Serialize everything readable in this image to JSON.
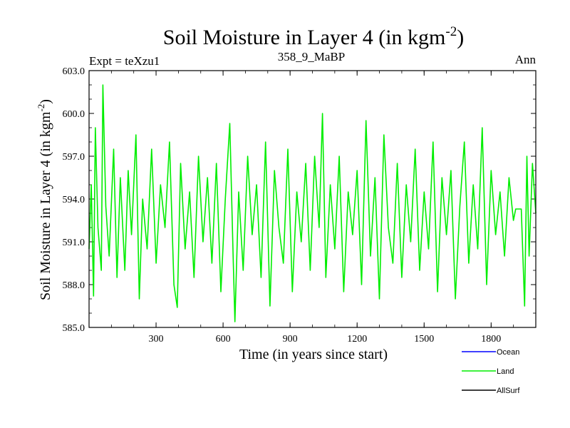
{
  "header": {
    "title_main": "Soil Moisture in Layer 4 (in kgm",
    "title_sup": "-2",
    "title_close": ")",
    "expt_label": "Expt = teXzu1",
    "run_label": "358_9_MaBP",
    "season_label": "Ann"
  },
  "colors": {
    "land": "#00ee00",
    "ocean": "#0000ff",
    "allsurf": "#000000",
    "axis": "#000000",
    "background": "#ffffff"
  },
  "chart_data": {
    "type": "line",
    "title": "Soil Moisture in Layer 4 (in kgm-2)",
    "xlabel": "Time (in years since start)",
    "ylabel_main": "Soil Moisture in Layer 4 (in kgm",
    "ylabel_sup": "-2",
    "ylabel_close": ")",
    "xlim": [
      0,
      2000
    ],
    "ylim": [
      585.0,
      603.0
    ],
    "x_ticks": [
      300,
      600,
      900,
      1200,
      1500,
      1800
    ],
    "x_tick_labels": [
      "300",
      "600",
      "900",
      "1200",
      "1500",
      "1800"
    ],
    "y_ticks": [
      585.0,
      588.0,
      591.0,
      594.0,
      597.0,
      600.0,
      603.0
    ],
    "y_tick_labels": [
      "585.0",
      "588.0",
      "591.0",
      "594.0",
      "597.0",
      "600.0",
      "603.0"
    ],
    "series": [
      {
        "name": "Land",
        "color": "#00ee00",
        "x": [
          0,
          10,
          20,
          28,
          40,
          55,
          62,
          75,
          90,
          110,
          125,
          140,
          160,
          175,
          190,
          210,
          225,
          240,
          260,
          280,
          300,
          320,
          340,
          360,
          380,
          395,
          410,
          430,
          450,
          470,
          490,
          510,
          530,
          550,
          570,
          590,
          610,
          630,
          645,
          653,
          670,
          690,
          710,
          730,
          750,
          770,
          790,
          810,
          830,
          850,
          870,
          890,
          910,
          930,
          950,
          970,
          990,
          1010,
          1030,
          1045,
          1060,
          1080,
          1100,
          1120,
          1140,
          1160,
          1180,
          1200,
          1220,
          1240,
          1260,
          1280,
          1300,
          1320,
          1340,
          1360,
          1380,
          1400,
          1420,
          1440,
          1460,
          1480,
          1500,
          1520,
          1540,
          1560,
          1580,
          1600,
          1620,
          1640,
          1660,
          1680,
          1700,
          1720,
          1740,
          1760,
          1780,
          1800,
          1820,
          1840,
          1860,
          1880,
          1900,
          1910,
          1935,
          1950,
          1960,
          1970,
          1985,
          2000
        ],
        "y": [
          590.5,
          595.0,
          587.2,
          599.0,
          592.0,
          589.0,
          602.0,
          593.5,
          590.0,
          597.5,
          588.5,
          595.5,
          589.0,
          596.0,
          591.5,
          598.5,
          587.0,
          594.0,
          590.5,
          597.5,
          589.5,
          595.0,
          592.0,
          598.0,
          588.0,
          586.4,
          596.5,
          590.5,
          594.5,
          588.5,
          597.0,
          591.0,
          595.5,
          589.5,
          596.5,
          587.5,
          594.0,
          599.3,
          590.0,
          585.4,
          594.5,
          589.0,
          597.0,
          591.5,
          595.0,
          588.5,
          598.0,
          586.5,
          596.0,
          592.0,
          589.5,
          597.5,
          587.5,
          594.5,
          591.0,
          596.5,
          589.0,
          597.0,
          592.0,
          600.0,
          588.5,
          595.0,
          590.5,
          597.0,
          587.5,
          594.5,
          591.5,
          596.0,
          588.0,
          599.5,
          590.0,
          595.5,
          587.0,
          598.5,
          592.0,
          589.5,
          596.5,
          588.5,
          595.0,
          591.0,
          597.5,
          589.0,
          594.5,
          590.5,
          598.0,
          587.5,
          595.5,
          591.5,
          596.0,
          587.0,
          593.5,
          598.0,
          589.5,
          595.0,
          590.5,
          599.0,
          588.0,
          596.0,
          591.5,
          594.5,
          590.0,
          595.5,
          592.5,
          593.3,
          593.3,
          586.5,
          597.0,
          590.0,
          596.5,
          593.0
        ]
      }
    ],
    "legend": {
      "position": "bottom-right",
      "entries": [
        {
          "label": "Ocean",
          "color": "#0000ff"
        },
        {
          "label": "Land",
          "color": "#00ee00"
        },
        {
          "label": "AllSurf",
          "color": "#000000"
        }
      ]
    }
  }
}
